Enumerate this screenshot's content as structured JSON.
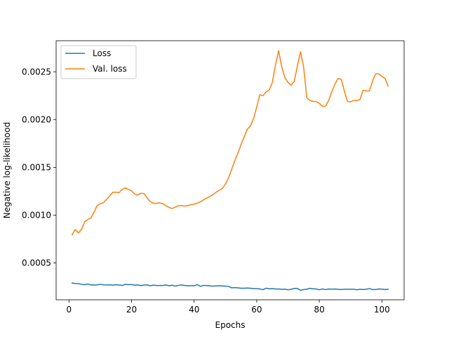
{
  "chart_data": {
    "type": "line",
    "title": "",
    "xlabel": "Epochs",
    "ylabel": "Negative log-likelihood",
    "xlim": [
      -4.1,
      107.1
    ],
    "ylim": [
      0.000115,
      0.002825
    ],
    "xticks": [
      0,
      20,
      40,
      60,
      80,
      100
    ],
    "xtick_labels": [
      "0",
      "20",
      "40",
      "60",
      "80",
      "100"
    ],
    "yticks": [
      0.0005,
      0.001,
      0.0015,
      0.002,
      0.0025
    ],
    "ytick_labels": [
      "0.0005",
      "0.0010",
      "0.0015",
      "0.0020",
      "0.0025"
    ],
    "grid": false,
    "legend_position": "top-left",
    "series": [
      {
        "name": "Loss",
        "color": "#1f77b4",
        "x": [
          1,
          2,
          3,
          4,
          5,
          6,
          7,
          8,
          9,
          10,
          11,
          12,
          13,
          14,
          15,
          16,
          17,
          18,
          19,
          20,
          21,
          22,
          23,
          24,
          25,
          26,
          27,
          28,
          29,
          30,
          31,
          32,
          33,
          34,
          35,
          36,
          37,
          38,
          39,
          40,
          41,
          42,
          43,
          44,
          45,
          46,
          47,
          48,
          49,
          50,
          51,
          52,
          53,
          54,
          55,
          56,
          57,
          58,
          59,
          60,
          61,
          62,
          63,
          64,
          65,
          66,
          67,
          68,
          69,
          70,
          71,
          72,
          73,
          74,
          75,
          76,
          77,
          78,
          79,
          80,
          81,
          82,
          83,
          84,
          85,
          86,
          87,
          88,
          89,
          90,
          91,
          92,
          93,
          94,
          95,
          96,
          97,
          98,
          99,
          100,
          101,
          102
        ],
        "y": [
          0.00029,
          0.000286,
          0.000284,
          0.000277,
          0.000272,
          0.00028,
          0.00027,
          0.00027,
          0.00027,
          0.000278,
          0.000271,
          0.00027,
          0.000272,
          0.000268,
          0.000272,
          0.00027,
          0.000265,
          0.000276,
          0.000274,
          0.000274,
          0.000268,
          0.00027,
          0.000264,
          0.00027,
          0.00027,
          0.000263,
          0.000268,
          0.000265,
          0.000265,
          0.000265,
          0.00027,
          0.000262,
          0.000268,
          0.000258,
          0.000266,
          0.00027,
          0.000265,
          0.000262,
          0.000262,
          0.000262,
          0.000274,
          0.000256,
          0.000265,
          0.000265,
          0.00026,
          0.000258,
          0.00026,
          0.000262,
          0.00026,
          0.000258,
          0.000255,
          0.00024,
          0.000243,
          0.00024,
          0.000236,
          0.000236,
          0.000238,
          0.000236,
          0.000232,
          0.000232,
          0.000228,
          0.000221,
          0.000236,
          0.00023,
          0.000232,
          0.000228,
          0.000228,
          0.000224,
          0.000226,
          0.00022,
          0.000225,
          0.000234,
          0.000233,
          0.000214,
          0.000222,
          0.000225,
          0.000235,
          0.00023,
          0.000228,
          0.00022,
          0.000228,
          0.000222,
          0.000228,
          0.000226,
          0.000228,
          0.000224,
          0.000222,
          0.000225,
          0.000225,
          0.000225,
          0.000225,
          0.00022,
          0.000225,
          0.000222,
          0.000225,
          0.000232,
          0.000222,
          0.000222,
          0.000228,
          0.000226,
          0.000222,
          0.000225
        ]
      },
      {
        "name": "Val. loss",
        "color": "#ff7f0e",
        "x": [
          1,
          2,
          3,
          4,
          5,
          6,
          7,
          8,
          9,
          10,
          11,
          12,
          13,
          14,
          15,
          16,
          17,
          18,
          19,
          20,
          21,
          22,
          23,
          24,
          25,
          26,
          27,
          28,
          29,
          30,
          31,
          32,
          33,
          34,
          35,
          36,
          37,
          38,
          39,
          40,
          41,
          42,
          43,
          44,
          45,
          46,
          47,
          48,
          49,
          50,
          51,
          52,
          53,
          54,
          55,
          56,
          57,
          58,
          59,
          60,
          61,
          62,
          63,
          64,
          65,
          66,
          67,
          68,
          69,
          70,
          71,
          72,
          73,
          74,
          75,
          76,
          77,
          78,
          79,
          80,
          81,
          82,
          83,
          84,
          85,
          86,
          87,
          88,
          89,
          90,
          91,
          92,
          93,
          94,
          95,
          96,
          97,
          98,
          99,
          100,
          101,
          102
        ],
        "y": [
          0.000795,
          0.00085,
          0.000815,
          0.00085,
          0.00093,
          0.000955,
          0.00097,
          0.00103,
          0.0011,
          0.00112,
          0.00113,
          0.001165,
          0.0012,
          0.00124,
          0.00124,
          0.001235,
          0.00127,
          0.001285,
          0.00127,
          0.001255,
          0.00122,
          0.00121,
          0.00123,
          0.001225,
          0.00118,
          0.00114,
          0.001125,
          0.001125,
          0.00113,
          0.00112,
          0.0011,
          0.00108,
          0.00107,
          0.001085,
          0.0011,
          0.0011,
          0.001095,
          0.0011,
          0.00111,
          0.001115,
          0.001125,
          0.00114,
          0.00116,
          0.00118,
          0.001195,
          0.001215,
          0.00124,
          0.00126,
          0.00128,
          0.001325,
          0.00139,
          0.00148,
          0.00157,
          0.00165,
          0.00174,
          0.00182,
          0.0019,
          0.001935,
          0.00201,
          0.00213,
          0.00226,
          0.00225,
          0.00229,
          0.00231,
          0.00239,
          0.00257,
          0.00272,
          0.00255,
          0.00244,
          0.00239,
          0.00236,
          0.0024,
          0.00256,
          0.00271,
          0.00255,
          0.00223,
          0.0022,
          0.00219,
          0.00219,
          0.00217,
          0.00214,
          0.00214,
          0.0022,
          0.00229,
          0.00237,
          0.00243,
          0.00242,
          0.0023,
          0.00219,
          0.002185,
          0.0022,
          0.0022,
          0.00221,
          0.002305,
          0.0023,
          0.0023,
          0.0024,
          0.00248,
          0.00248,
          0.00245,
          0.00243,
          0.00235
        ]
      }
    ]
  }
}
